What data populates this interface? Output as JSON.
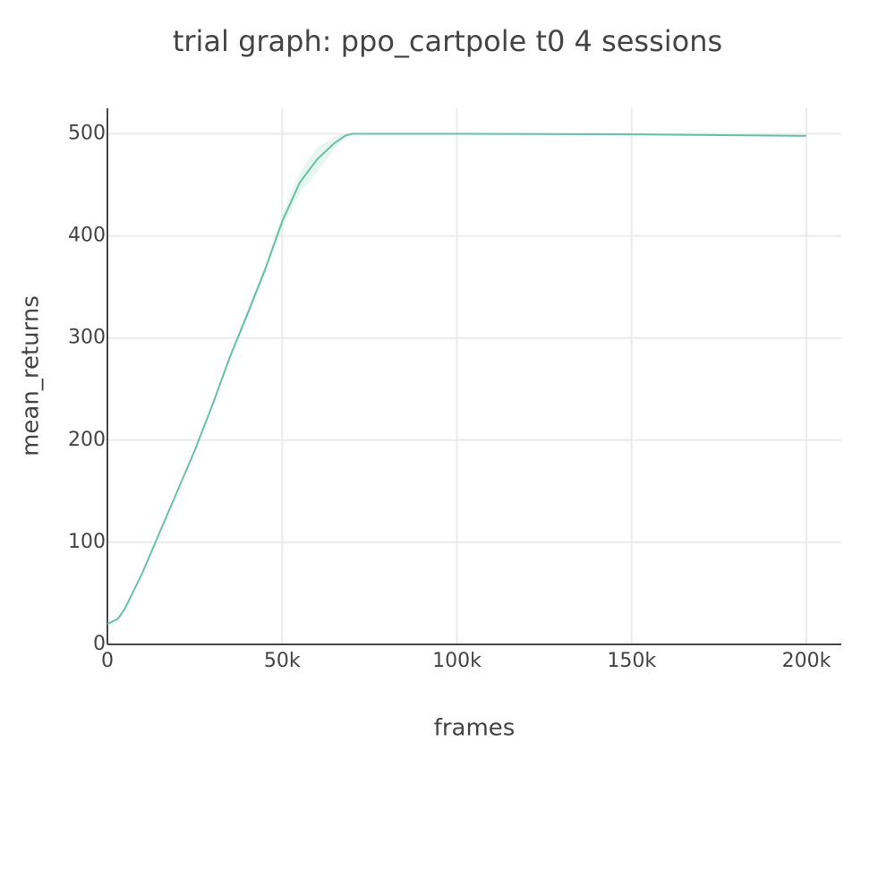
{
  "chart_data": {
    "type": "line",
    "title": "trial graph: ppo_cartpole t0 4 sessions",
    "x_label": "frames",
    "y_label": "mean_returns",
    "x": [
      0,
      3000,
      5000,
      10000,
      15000,
      20000,
      25000,
      30000,
      35000,
      40000,
      45000,
      50000,
      55000,
      60000,
      65000,
      68000,
      70000,
      100000,
      150000,
      200000
    ],
    "series": [
      {
        "color": "#66c2a5",
        "values": [
          20,
          25,
          35,
          70,
          110,
          150,
          190,
          234,
          281,
          323,
          366,
          414,
          452,
          475,
          491,
          498,
          500,
          500,
          499.5,
          498
        ],
        "upper": [
          20,
          25,
          35,
          71,
          111,
          151,
          191,
          236,
          284,
          327,
          370,
          420,
          462,
          487,
          497,
          500,
          500,
          500,
          499.5,
          498
        ],
        "lower": [
          20,
          25,
          35,
          69,
          109,
          149,
          189,
          232,
          278,
          319,
          362,
          408,
          442,
          463,
          485,
          496,
          500,
          500,
          499.5,
          498
        ]
      }
    ],
    "xlim": [
      0,
      210000
    ],
    "xticks": [
      0,
      {
        "value": 50000,
        "label": "50k"
      },
      {
        "value": 100000,
        "label": "100k"
      },
      {
        "value": 150000,
        "label": "150k"
      },
      {
        "value": 200000,
        "label": "200k"
      }
    ],
    "ylim": [
      0,
      525
    ],
    "yticks": [
      0,
      100,
      200,
      300,
      400,
      500
    ],
    "grid": true
  }
}
